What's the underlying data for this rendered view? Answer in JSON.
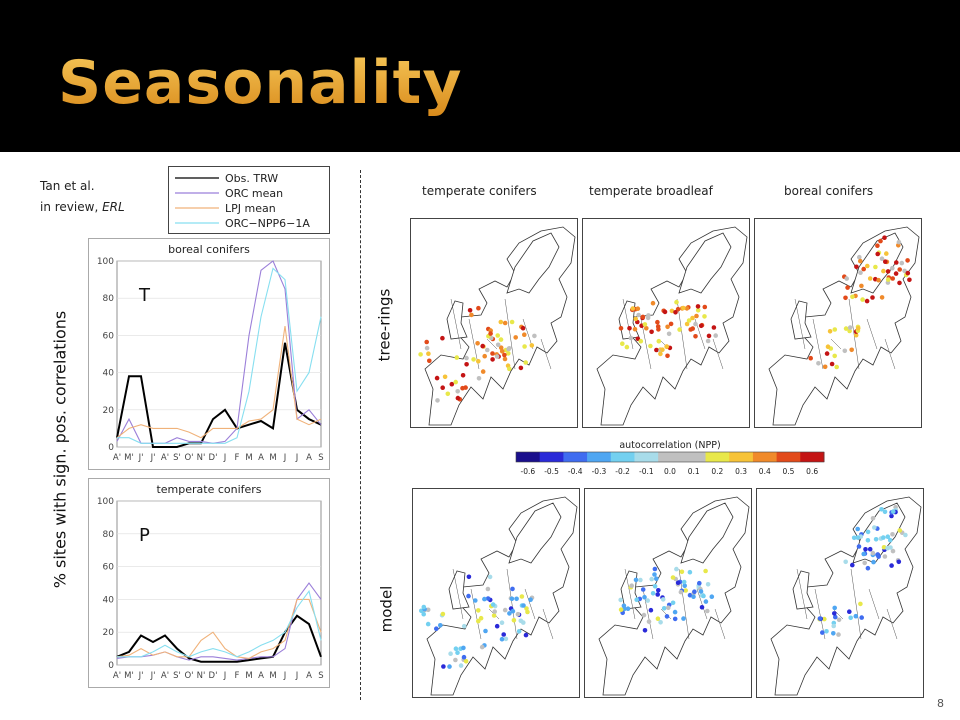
{
  "slide": {
    "title": "Seasonality",
    "citation_line1": "Tan et al.",
    "citation_line2_prefix": "in review, ",
    "citation_line2_italic": "ERL",
    "y_axis_label": "% sites with sign. pos. correlations",
    "row_label_top": "tree-rings",
    "row_label_bottom": "model",
    "page_number": "8"
  },
  "legend": [
    "Obs. TRW",
    "ORC mean",
    "LPJ mean",
    "ORC−NPP6−1A"
  ],
  "colors": {
    "title": "#e6a02a",
    "obs": "#000000",
    "orc": "#9b7fd9",
    "lpj": "#f0b27a",
    "orcnpp": "#87dff0"
  },
  "maps": {
    "headers": [
      "temperate conifers",
      "temperate broadleaf",
      "boreal conifers"
    ],
    "colorbar_title": "autocorrelation (NPP)",
    "colorbar_ticks": [
      "-0.6",
      "-0.5",
      "-0.4",
      "-0.3",
      "-0.2",
      "-0.1",
      "0.0",
      "0.1",
      "0.2",
      "0.3",
      "0.4",
      "0.5",
      "0.6"
    ],
    "colorbar_colors": [
      "#1a0f8c",
      "#2a2ad8",
      "#3f6cf0",
      "#4fa6f2",
      "#73d0f0",
      "#a8dcea",
      "#c0c0c0",
      "#c0c0c0",
      "#e8e84a",
      "#f7c338",
      "#f08a2a",
      "#e24a1a",
      "#c41414"
    ]
  },
  "chart_data": [
    {
      "type": "line",
      "title": "boreal conifers",
      "panel_label": "T",
      "categories": [
        "A'",
        "M'",
        "J'",
        "J'",
        "A'",
        "S'",
        "O'",
        "N'",
        "D'",
        "J",
        "F",
        "M",
        "A",
        "M",
        "J",
        "J",
        "A",
        "S"
      ],
      "ylim": [
        0,
        100
      ],
      "yticks": [
        0,
        20,
        40,
        60,
        80,
        100
      ],
      "series": [
        {
          "name": "Obs. TRW",
          "color_key": "obs",
          "values": [
            5,
            38,
            38,
            0,
            0,
            0,
            2,
            2,
            15,
            20,
            10,
            12,
            14,
            10,
            56,
            20,
            15,
            12
          ]
        },
        {
          "name": "ORC mean",
          "color_key": "orc",
          "values": [
            3,
            15,
            2,
            2,
            2,
            5,
            3,
            3,
            2,
            3,
            10,
            60,
            95,
            100,
            85,
            15,
            20,
            12
          ]
        },
        {
          "name": "LPJ mean",
          "color_key": "lpj",
          "values": [
            5,
            10,
            12,
            10,
            10,
            10,
            8,
            5,
            10,
            10,
            10,
            14,
            15,
            20,
            65,
            15,
            12,
            15
          ]
        },
        {
          "name": "ORC−NPP6−1A",
          "color_key": "orcnpp",
          "values": [
            5,
            5,
            2,
            2,
            2,
            2,
            2,
            2,
            2,
            2,
            5,
            30,
            70,
            96,
            90,
            30,
            40,
            70
          ]
        }
      ]
    },
    {
      "type": "line",
      "title": "temperate conifers",
      "panel_label": "P",
      "categories": [
        "A'",
        "M'",
        "J'",
        "J'",
        "A'",
        "S'",
        "O'",
        "N'",
        "D'",
        "J",
        "F",
        "M",
        "A",
        "M",
        "J",
        "J",
        "A",
        "S"
      ],
      "ylim": [
        0,
        100
      ],
      "yticks": [
        0,
        20,
        40,
        60,
        80,
        100
      ],
      "series": [
        {
          "name": "Obs. TRW",
          "color_key": "obs",
          "values": [
            5,
            8,
            18,
            14,
            18,
            10,
            4,
            2,
            2,
            2,
            2,
            3,
            4,
            5,
            20,
            30,
            25,
            5
          ]
        },
        {
          "name": "ORC mean",
          "color_key": "orc",
          "values": [
            4,
            5,
            5,
            6,
            8,
            5,
            3,
            5,
            5,
            4,
            3,
            4,
            5,
            5,
            10,
            40,
            50,
            40
          ]
        },
        {
          "name": "LPJ mean",
          "color_key": "lpj",
          "values": [
            5,
            6,
            10,
            6,
            8,
            5,
            5,
            15,
            20,
            10,
            5,
            4,
            8,
            10,
            15,
            40,
            40,
            20
          ]
        },
        {
          "name": "ORC−NPP6−1A",
          "color_key": "orcnpp",
          "values": [
            5,
            5,
            5,
            8,
            12,
            8,
            5,
            8,
            10,
            8,
            5,
            8,
            12,
            15,
            20,
            35,
            45,
            15
          ]
        }
      ]
    }
  ]
}
